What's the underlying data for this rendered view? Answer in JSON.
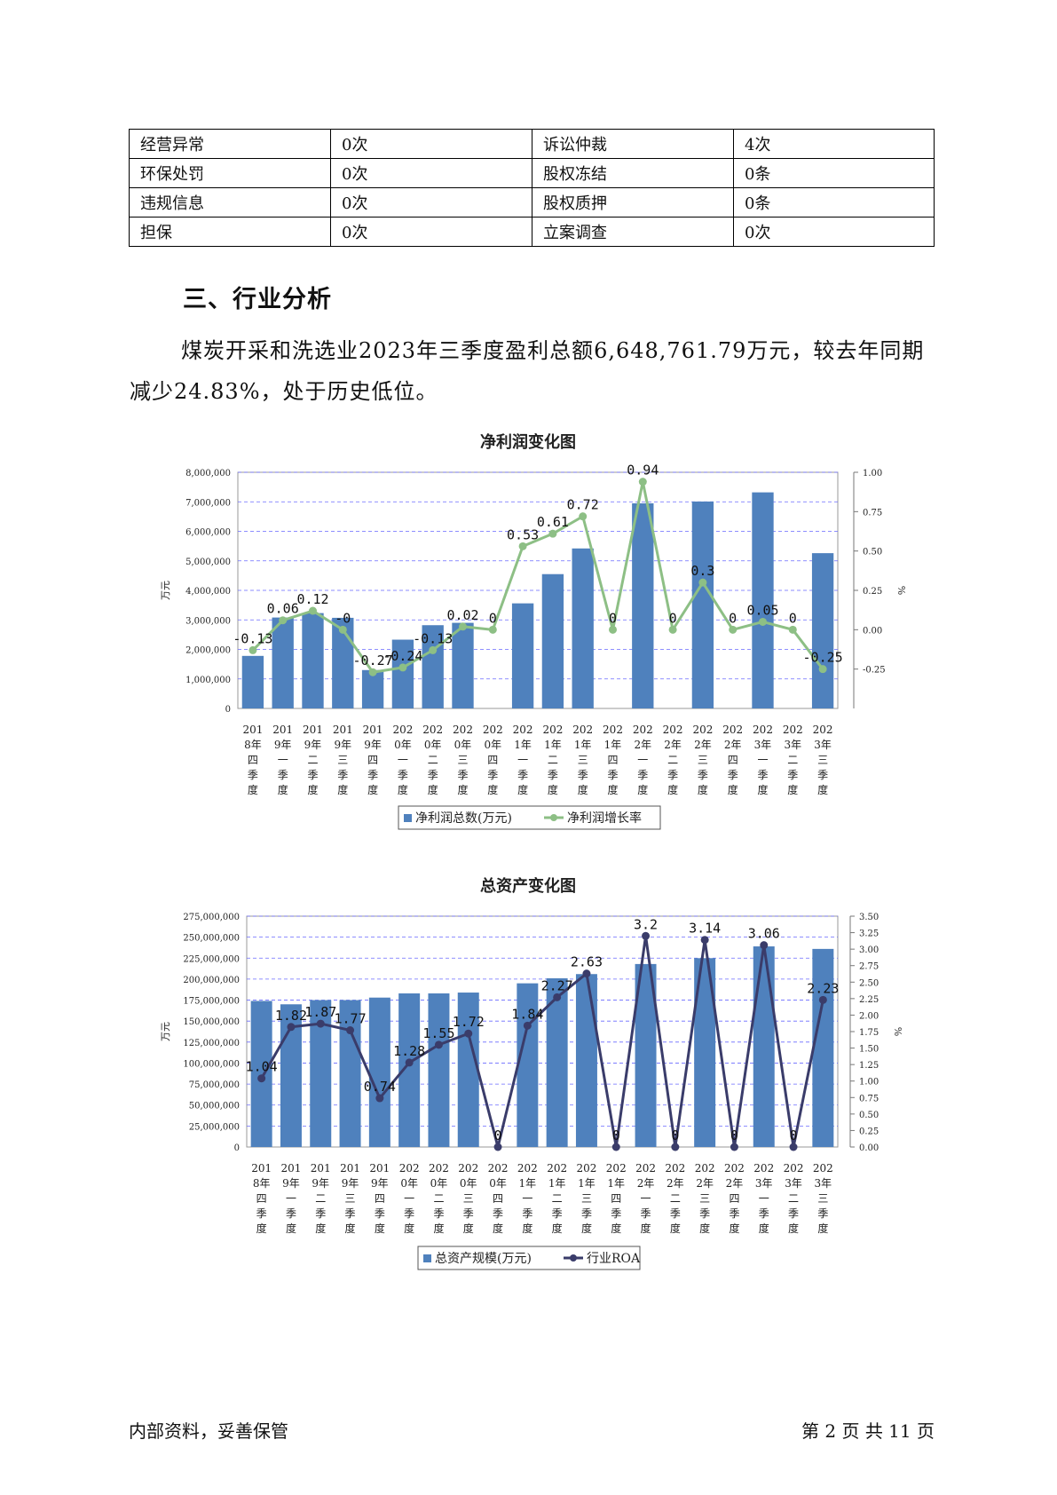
{
  "risk_table": {
    "rows": [
      [
        {
          "label": "经营异常",
          "value": "0次"
        },
        {
          "label": "诉讼仲裁",
          "value": "4次"
        }
      ],
      [
        {
          "label": "环保处罚",
          "value": "0次"
        },
        {
          "label": "股权冻结",
          "value": "0条"
        }
      ],
      [
        {
          "label": "违规信息",
          "value": "0次"
        },
        {
          "label": "股权质押",
          "value": "0条"
        }
      ],
      [
        {
          "label": "担保",
          "value": "0次"
        },
        {
          "label": "立案调查",
          "value": "0次"
        }
      ]
    ]
  },
  "section": {
    "heading": "三、行业分析",
    "paragraph": "煤炭开采和洗选业2023年三季度盈利总额6,648,761.79万元，较去年同期减少24.83%，处于历史低位。"
  },
  "footer": {
    "left": "内部资料，妥善保管",
    "right": "第 2 页   共 11 页"
  },
  "chart_data": [
    {
      "type": "bar",
      "title": "净利润变化图",
      "ylabel": "万元",
      "y2label": "%",
      "ylim": [
        0,
        8000000
      ],
      "y2lim": [
        -0.5,
        1.0
      ],
      "yticks": [
        "0",
        "1,000,000",
        "2,000,000",
        "3,000,000",
        "4,000,000",
        "5,000,000",
        "6,000,000",
        "7,000,000",
        "8,000,000"
      ],
      "y2ticks": [
        "-0.25",
        "0.00",
        "0.25",
        "0.50",
        "0.75",
        "1.00"
      ],
      "categories": [
        [
          "201",
          "8年",
          "四",
          "季",
          "度"
        ],
        [
          "201",
          "9年",
          "一",
          "季",
          "度"
        ],
        [
          "201",
          "9年",
          "二",
          "季",
          "度"
        ],
        [
          "201",
          "9年",
          "三",
          "季",
          "度"
        ],
        [
          "201",
          "9年",
          "四",
          "季",
          "度"
        ],
        [
          "202",
          "0年",
          "一",
          "季",
          "度"
        ],
        [
          "202",
          "0年",
          "二",
          "季",
          "度"
        ],
        [
          "202",
          "0年",
          "三",
          "季",
          "度"
        ],
        [
          "202",
          "0年",
          "四",
          "季",
          "度"
        ],
        [
          "202",
          "1年",
          "一",
          "季",
          "度"
        ],
        [
          "202",
          "1年",
          "二",
          "季",
          "度"
        ],
        [
          "202",
          "1年",
          "三",
          "季",
          "度"
        ],
        [
          "202",
          "1年",
          "四",
          "季",
          "度"
        ],
        [
          "202",
          "2年",
          "一",
          "季",
          "度"
        ],
        [
          "202",
          "2年",
          "二",
          "季",
          "度"
        ],
        [
          "202",
          "2年",
          "三",
          "季",
          "度"
        ],
        [
          "202",
          "2年",
          "四",
          "季",
          "度"
        ],
        [
          "202",
          "3年",
          "一",
          "季",
          "度"
        ],
        [
          "202",
          "3年",
          "二",
          "季",
          "度"
        ],
        [
          "202",
          "3年",
          "三",
          "季",
          "度"
        ]
      ],
      "series": [
        {
          "name": "净利润总数(万元)",
          "type": "bar",
          "color": "#4f81bd",
          "values": [
            1780000,
            3080000,
            3230000,
            3070000,
            1300000,
            2330000,
            2820000,
            2900000,
            0,
            3560000,
            4550000,
            5420000,
            0,
            6950000,
            0,
            7010000,
            0,
            7320000,
            0,
            5260000
          ]
        },
        {
          "name": "净利润增长率",
          "type": "line",
          "color": "#8dbf85",
          "values": [
            -0.13,
            0.06,
            0.12,
            -0.0,
            -0.27,
            -0.24,
            -0.13,
            0.02,
            0,
            0.53,
            0.61,
            0.72,
            0,
            0.94,
            0,
            0.3,
            0,
            0.05,
            0,
            -0.25
          ],
          "labels": [
            "-0.13",
            "0.06",
            "0.12",
            "-0",
            "-0.27",
            "-0.24",
            "-0.13",
            "0.02",
            "0",
            "0.53",
            "0.61",
            "0.72",
            "0",
            "0.94",
            "0",
            "0.3",
            "0",
            "0.05",
            "0",
            "-0.25"
          ]
        }
      ],
      "legend": "bottom"
    },
    {
      "type": "bar",
      "title": "总资产变化图",
      "ylabel": "万元",
      "y2label": "%",
      "ylim": [
        0,
        275000000
      ],
      "y2lim": [
        0,
        3.5
      ],
      "yticks": [
        "0",
        "25,000,000",
        "50,000,000",
        "75,000,000",
        "100,000,000",
        "125,000,000",
        "150,000,000",
        "175,000,000",
        "200,000,000",
        "225,000,000",
        "250,000,000",
        "275,000,000"
      ],
      "y2ticks": [
        "0.00",
        "0.25",
        "0.50",
        "0.75",
        "1.00",
        "1.25",
        "1.50",
        "1.75",
        "2.00",
        "2.25",
        "2.50",
        "2.75",
        "3.00",
        "3.25",
        "3.50"
      ],
      "categories": [
        [
          "201",
          "8年",
          "四",
          "季",
          "度"
        ],
        [
          "201",
          "9年",
          "一",
          "季",
          "度"
        ],
        [
          "201",
          "9年",
          "二",
          "季",
          "度"
        ],
        [
          "201",
          "9年",
          "三",
          "季",
          "度"
        ],
        [
          "201",
          "9年",
          "四",
          "季",
          "度"
        ],
        [
          "202",
          "0年",
          "一",
          "季",
          "度"
        ],
        [
          "202",
          "0年",
          "二",
          "季",
          "度"
        ],
        [
          "202",
          "0年",
          "三",
          "季",
          "度"
        ],
        [
          "202",
          "0年",
          "四",
          "季",
          "度"
        ],
        [
          "202",
          "1年",
          "一",
          "季",
          "度"
        ],
        [
          "202",
          "1年",
          "二",
          "季",
          "度"
        ],
        [
          "202",
          "1年",
          "三",
          "季",
          "度"
        ],
        [
          "202",
          "1年",
          "四",
          "季",
          "度"
        ],
        [
          "202",
          "2年",
          "一",
          "季",
          "度"
        ],
        [
          "202",
          "2年",
          "二",
          "季",
          "度"
        ],
        [
          "202",
          "2年",
          "三",
          "季",
          "度"
        ],
        [
          "202",
          "2年",
          "四",
          "季",
          "度"
        ],
        [
          "202",
          "3年",
          "一",
          "季",
          "度"
        ],
        [
          "202",
          "3年",
          "二",
          "季",
          "度"
        ],
        [
          "202",
          "3年",
          "三",
          "季",
          "度"
        ]
      ],
      "series": [
        {
          "name": "总资产规模(万元)",
          "type": "bar",
          "color": "#4f81bd",
          "values": [
            174000000,
            170000000,
            175000000,
            175000000,
            178000000,
            183000000,
            183000000,
            184000000,
            0,
            195000000,
            201000000,
            206000000,
            0,
            218000000,
            0,
            225000000,
            0,
            239000000,
            0,
            236000000
          ]
        },
        {
          "name": "行业ROA",
          "type": "line",
          "color": "#3a3c6a",
          "values": [
            1.04,
            1.82,
            1.87,
            1.77,
            0.74,
            1.28,
            1.55,
            1.72,
            0,
            1.84,
            2.27,
            2.63,
            0,
            3.2,
            0,
            3.14,
            0,
            3.06,
            0,
            2.23
          ],
          "labels": [
            "1.04",
            "1.82",
            "1.87",
            "1.77",
            "0.74",
            "1.28",
            "1.55",
            "1.72",
            "0",
            "1.84",
            "2.27",
            "2.63",
            "0",
            "3.2",
            "0",
            "3.14",
            "0",
            "3.06",
            "0",
            "2.23"
          ]
        }
      ],
      "legend": "bottom"
    }
  ]
}
